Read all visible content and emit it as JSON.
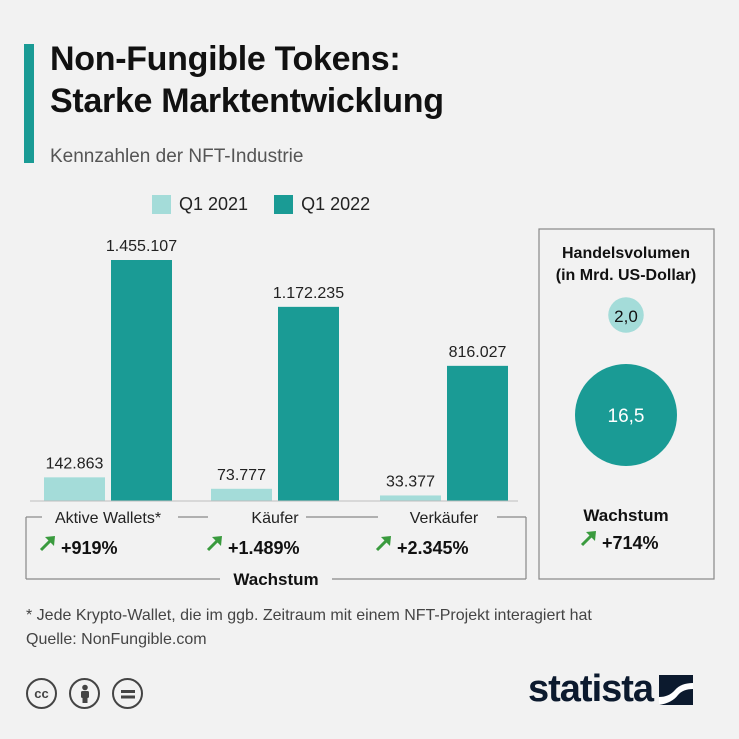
{
  "title_line1": "Non-Fungible Tokens:",
  "title_line2": "Starke Marktentwicklung",
  "subtitle": "Kennzahlen der NFT-Industrie",
  "colors": {
    "q1_2021": "#a4dcd9",
    "q1_2022": "#1a9b95",
    "accent": "#1a9b95",
    "arrow": "#3a9b3e"
  },
  "chart_data": [
    {
      "type": "bar",
      "categories": [
        "Aktive Wallets*",
        "Käufer",
        "Verkäufer"
      ],
      "series": [
        {
          "name": "Q1 2021",
          "values": [
            142863,
            73777,
            33377
          ],
          "labels": [
            "142.863",
            "73.777",
            "33.377"
          ]
        },
        {
          "name": "Q1 2022",
          "values": [
            1455107,
            1172235,
            816027
          ],
          "labels": [
            "1.455.107",
            "1.172.235",
            "816.027"
          ]
        }
      ],
      "growth": [
        "+919%",
        "+1.489%",
        "+2.345%"
      ],
      "growth_label": "Wachstum",
      "ylim": [
        0,
        1455107
      ],
      "legend": "top"
    },
    {
      "type": "bubble",
      "title_line1": "Handelsvolumen",
      "title_line2": "(in Mrd. US-Dollar)",
      "series": [
        {
          "name": "Q1 2021",
          "value": 2.0,
          "label": "2,0"
        },
        {
          "name": "Q1 2022",
          "value": 16.5,
          "label": "16,5"
        }
      ],
      "growth_label": "Wachstum",
      "growth": "+714%"
    }
  ],
  "footnote": "* Jede Krypto-Wallet, die im ggb. Zeitraum mit einem NFT-Projekt interagiert hat",
  "source": "Quelle: NonFungible.com",
  "license_icons": [
    "cc-icon",
    "attribution-icon",
    "no-derivatives-icon"
  ],
  "logo_text": "statista"
}
